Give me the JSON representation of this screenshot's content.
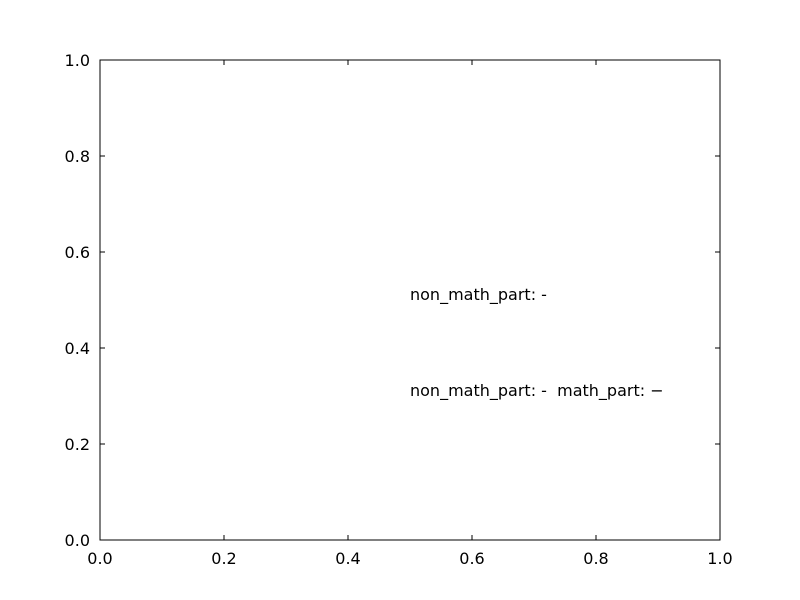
{
  "chart_data": {
    "type": "scatter",
    "title": "",
    "xlabel": "",
    "ylabel": "",
    "xlim": [
      0.0,
      1.0
    ],
    "ylim": [
      0.0,
      1.0
    ],
    "grid": false,
    "x_ticks": [
      "0.0",
      "0.2",
      "0.4",
      "0.6",
      "0.8",
      "1.0"
    ],
    "y_ticks": [
      "0.0",
      "0.2",
      "0.4",
      "0.6",
      "0.8",
      "1.0"
    ],
    "series": [],
    "annotations": [
      {
        "x": 0.5,
        "y": 0.5,
        "text": "non_math_part: -"
      },
      {
        "x": 0.5,
        "y": 0.3,
        "text": "non_math_part: -  math_part: −"
      }
    ]
  }
}
